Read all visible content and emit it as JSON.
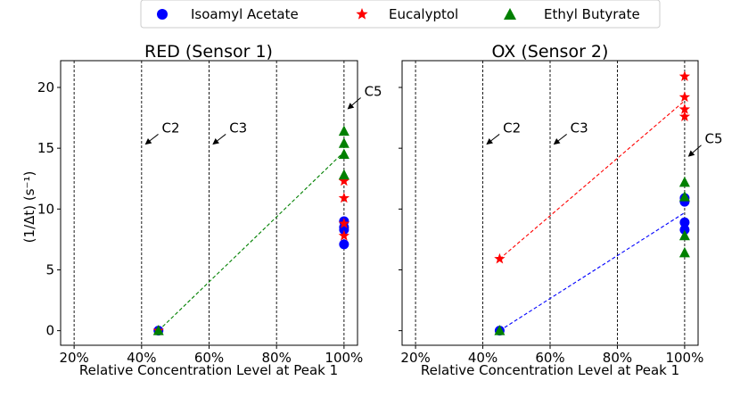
{
  "legend": {
    "position": "top-center",
    "entries": [
      {
        "label": "Isoamyl Acetate",
        "marker": "circle",
        "color": "#0000ff"
      },
      {
        "label": "Eucalyptol",
        "marker": "star",
        "color": "#ff0000"
      },
      {
        "label": "Ethyl Butyrate",
        "marker": "triangle",
        "color": "#008000"
      }
    ]
  },
  "chart_data": [
    {
      "type": "scatter",
      "title": "RED (Sensor 1)",
      "xlabel": "Relative Concentration Level at Peak 1",
      "ylabel": "(1/Δt) (s⁻¹)",
      "xlim": [
        16,
        104
      ],
      "ylim": [
        -1.2,
        22.2
      ],
      "xticks": [
        20,
        40,
        60,
        80,
        100
      ],
      "xtick_labels": [
        "20%",
        "40%",
        "60%",
        "80%",
        "100%"
      ],
      "yticks": [
        0,
        5,
        10,
        15,
        20
      ],
      "ytick_labels": [
        "0",
        "5",
        "10",
        "15",
        "20"
      ],
      "vlines": [
        20,
        40,
        60,
        80,
        100
      ],
      "annotations": [
        {
          "text": "C2",
          "x": 41,
          "y": 15.3,
          "text_x": 46,
          "text_y": 16.3
        },
        {
          "text": "C3",
          "x": 61,
          "y": 15.3,
          "text_x": 66,
          "text_y": 16.3
        },
        {
          "text": "C5",
          "x": 101,
          "y": 18.2,
          "text_x": 106,
          "text_y": 19.3
        }
      ],
      "series": [
        {
          "name": "Isoamyl Acetate",
          "marker": "circle",
          "color": "#0000ff",
          "points": [
            [
              45,
              0
            ],
            [
              100,
              7.1
            ],
            [
              100,
              8.3
            ],
            [
              100,
              8.5
            ],
            [
              100,
              9.0
            ]
          ]
        },
        {
          "name": "Eucalyptol",
          "marker": "star",
          "color": "#ff0000",
          "points": [
            [
              45,
              0
            ],
            [
              100,
              7.8
            ],
            [
              100,
              8.8
            ],
            [
              100,
              10.9
            ],
            [
              100,
              12.3
            ]
          ]
        },
        {
          "name": "Ethyl Butyrate",
          "marker": "triangle",
          "color": "#008000",
          "points": [
            [
              45,
              0
            ],
            [
              100,
              12.8
            ],
            [
              100,
              14.5
            ],
            [
              100,
              15.4
            ],
            [
              100,
              16.4
            ]
          ],
          "fit_line": [
            [
              45,
              0
            ],
            [
              100,
              14.7
            ]
          ]
        }
      ]
    },
    {
      "type": "scatter",
      "title": "OX (Sensor 2)",
      "xlabel": "Relative Concentration Level at Peak 1",
      "ylabel": "",
      "xlim": [
        16,
        104
      ],
      "ylim": [
        -1.2,
        22.2
      ],
      "xticks": [
        20,
        40,
        60,
        80,
        100
      ],
      "xtick_labels": [
        "20%",
        "40%",
        "60%",
        "80%",
        "100%"
      ],
      "yticks": [
        0,
        5,
        10,
        15,
        20
      ],
      "ytick_labels": [],
      "vlines": [
        20,
        40,
        60,
        80,
        100
      ],
      "annotations": [
        {
          "text": "C2",
          "x": 41,
          "y": 15.3,
          "text_x": 46,
          "text_y": 16.3
        },
        {
          "text": "C3",
          "x": 61,
          "y": 15.3,
          "text_x": 66,
          "text_y": 16.3
        },
        {
          "text": "C5",
          "x": 101,
          "y": 14.3,
          "text_x": 106,
          "text_y": 15.4
        }
      ],
      "series": [
        {
          "name": "Isoamyl Acetate",
          "marker": "circle",
          "color": "#0000ff",
          "points": [
            [
              45,
              0
            ],
            [
              100,
              8.3
            ],
            [
              100,
              8.9
            ],
            [
              100,
              10.6
            ],
            [
              100,
              10.9
            ]
          ],
          "fit_line": [
            [
              45,
              0
            ],
            [
              100,
              9.7
            ]
          ]
        },
        {
          "name": "Eucalyptol",
          "marker": "star",
          "color": "#ff0000",
          "points": [
            [
              45,
              5.9
            ],
            [
              100,
              17.6
            ],
            [
              100,
              18.2
            ],
            [
              100,
              19.2
            ],
            [
              100,
              20.9
            ]
          ],
          "fit_line": [
            [
              45,
              5.9
            ],
            [
              100,
              18.9
            ]
          ]
        },
        {
          "name": "Ethyl Butyrate",
          "marker": "triangle",
          "color": "#008000",
          "points": [
            [
              45,
              0
            ],
            [
              100,
              6.4
            ],
            [
              100,
              7.8
            ],
            [
              100,
              11.0
            ],
            [
              100,
              12.2
            ]
          ]
        }
      ]
    }
  ]
}
